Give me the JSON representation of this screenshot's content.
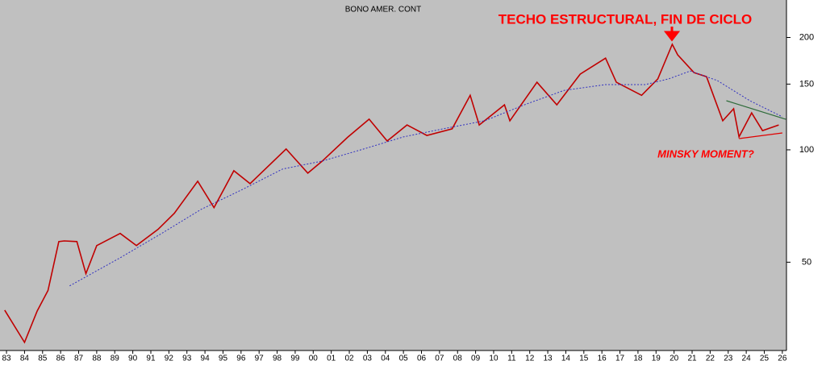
{
  "chart_data": {
    "type": "line",
    "title": "BONO AMER. CONT",
    "annotations": [
      {
        "text": "TECHO ESTRUCTURAL, FIN DE CICLO",
        "color": "#ff0000"
      },
      {
        "text": "MINSKY MOMENT?",
        "color": "#ff0000"
      }
    ],
    "log_scale": true,
    "background": "#c0c0c0",
    "xlim": [
      1982.64,
      2026.23
    ],
    "xticks": [
      {
        "value": 1983,
        "label": "83"
      },
      {
        "value": 1984,
        "label": "84"
      },
      {
        "value": 1985,
        "label": "85"
      },
      {
        "value": 1986,
        "label": "86"
      },
      {
        "value": 1987,
        "label": "87"
      },
      {
        "value": 1988,
        "label": "88"
      },
      {
        "value": 1989,
        "label": "89"
      },
      {
        "value": 1990,
        "label": "90"
      },
      {
        "value": 1991,
        "label": "91"
      },
      {
        "value": 1992,
        "label": "92"
      },
      {
        "value": 1993,
        "label": "93"
      },
      {
        "value": 1994,
        "label": "94"
      },
      {
        "value": 1995,
        "label": "95"
      },
      {
        "value": 1996,
        "label": "96"
      },
      {
        "value": 1997,
        "label": "97"
      },
      {
        "value": 1998,
        "label": "98"
      },
      {
        "value": 1999,
        "label": "99"
      },
      {
        "value": 2000,
        "label": "00"
      },
      {
        "value": 2001,
        "label": "01"
      },
      {
        "value": 2002,
        "label": "02"
      },
      {
        "value": 2003,
        "label": "03"
      },
      {
        "value": 2004,
        "label": "04"
      },
      {
        "value": 2005,
        "label": "05"
      },
      {
        "value": 2006,
        "label": "06"
      },
      {
        "value": 2007,
        "label": "07"
      },
      {
        "value": 2008,
        "label": "08"
      },
      {
        "value": 2009,
        "label": "09"
      },
      {
        "value": 2010,
        "label": "10"
      },
      {
        "value": 2011,
        "label": "11"
      },
      {
        "value": 2012,
        "label": "12"
      },
      {
        "value": 2013,
        "label": "13"
      },
      {
        "value": 2014,
        "label": "14"
      },
      {
        "value": 2015,
        "label": "15"
      },
      {
        "value": 2016,
        "label": "16"
      },
      {
        "value": 2017,
        "label": "17"
      },
      {
        "value": 2018,
        "label": "18"
      },
      {
        "value": 2019,
        "label": "19"
      },
      {
        "value": 2020,
        "label": "20"
      },
      {
        "value": 2021,
        "label": "21"
      },
      {
        "value": 2022,
        "label": "22"
      },
      {
        "value": 2023,
        "label": "23"
      },
      {
        "value": 2024,
        "label": "24"
      },
      {
        "value": 2025,
        "label": "25"
      },
      {
        "value": 2026,
        "label": "26"
      }
    ],
    "ylim": [
      29,
      252
    ],
    "yticks": [
      50,
      100,
      150,
      200
    ],
    "series": [
      {
        "color": "#c00000",
        "dash": false,
        "x": [
          1982.9,
          1984.0,
          1984.7,
          1985.3,
          1985.9,
          1986.2,
          1986.9,
          1987.4,
          1988.0,
          1989.3,
          1990.2,
          1991.4,
          1992.3,
          1993.6,
          1994.5,
          1995.6,
          1996.5,
          1998.5,
          1999.7,
          2000.5,
          2001.9,
          2003.1,
          2004.1,
          2005.2,
          2006.3,
          2007.7,
          2008.7,
          2009.2,
          2010.6,
          2010.9,
          2012.4,
          2013.5,
          2014.8,
          2016.2,
          2016.8,
          2018.2,
          2019.1,
          2019.9,
          2020.2,
          2021.1,
          2021.8,
          2022.7,
          2023.3,
          2023.6,
          2024.3,
          2024.9,
          2025.8
        ],
        "values": [
          37.2,
          30.5,
          37,
          42,
          56.8,
          57,
          56.8,
          46.6,
          55.4,
          59.7,
          55.4,
          61.2,
          67.6,
          82.4,
          70,
          87.9,
          81.2,
          100.5,
          86.6,
          93.3,
          108,
          120.8,
          105.6,
          116.6,
          109.3,
          113.8,
          140,
          116.6,
          132,
          119.6,
          151.7,
          132,
          159.5,
          176,
          151.7,
          140,
          154.9,
          191.7,
          179.7,
          161,
          157,
          119.6,
          128.8,
          108.3,
          125.6,
          112.6,
          116.6
        ]
      },
      {
        "color": "#3030c0",
        "dash": true,
        "x": [
          1986.5,
          1989.3,
          1991.6,
          1993.8,
          1996.1,
          1998.3,
          2000.5,
          2002.8,
          2005.0,
          2007.2,
          2009.5,
          2011.7,
          2013.9,
          2016.2,
          2018.4,
          2019.7,
          2020.9,
          2022.4,
          2024.2,
          2026.0
        ],
        "values": [
          43.2,
          51.4,
          59.7,
          69.3,
          78.4,
          88.8,
          93.3,
          100.5,
          108.3,
          113.8,
          119.6,
          132,
          144.3,
          149.5,
          149.5,
          154.9,
          162.6,
          153.3,
          135.4,
          122.6
        ]
      }
    ],
    "trendlines": [
      {
        "color": "#2e6b3a",
        "x": [
          2022.9,
          2026.2
        ],
        "values": [
          135.4,
          120.7
        ]
      },
      {
        "color": "#e00000",
        "x": [
          2023.6,
          2026.0
        ],
        "values": [
          107.2,
          111.0
        ]
      }
    ]
  }
}
